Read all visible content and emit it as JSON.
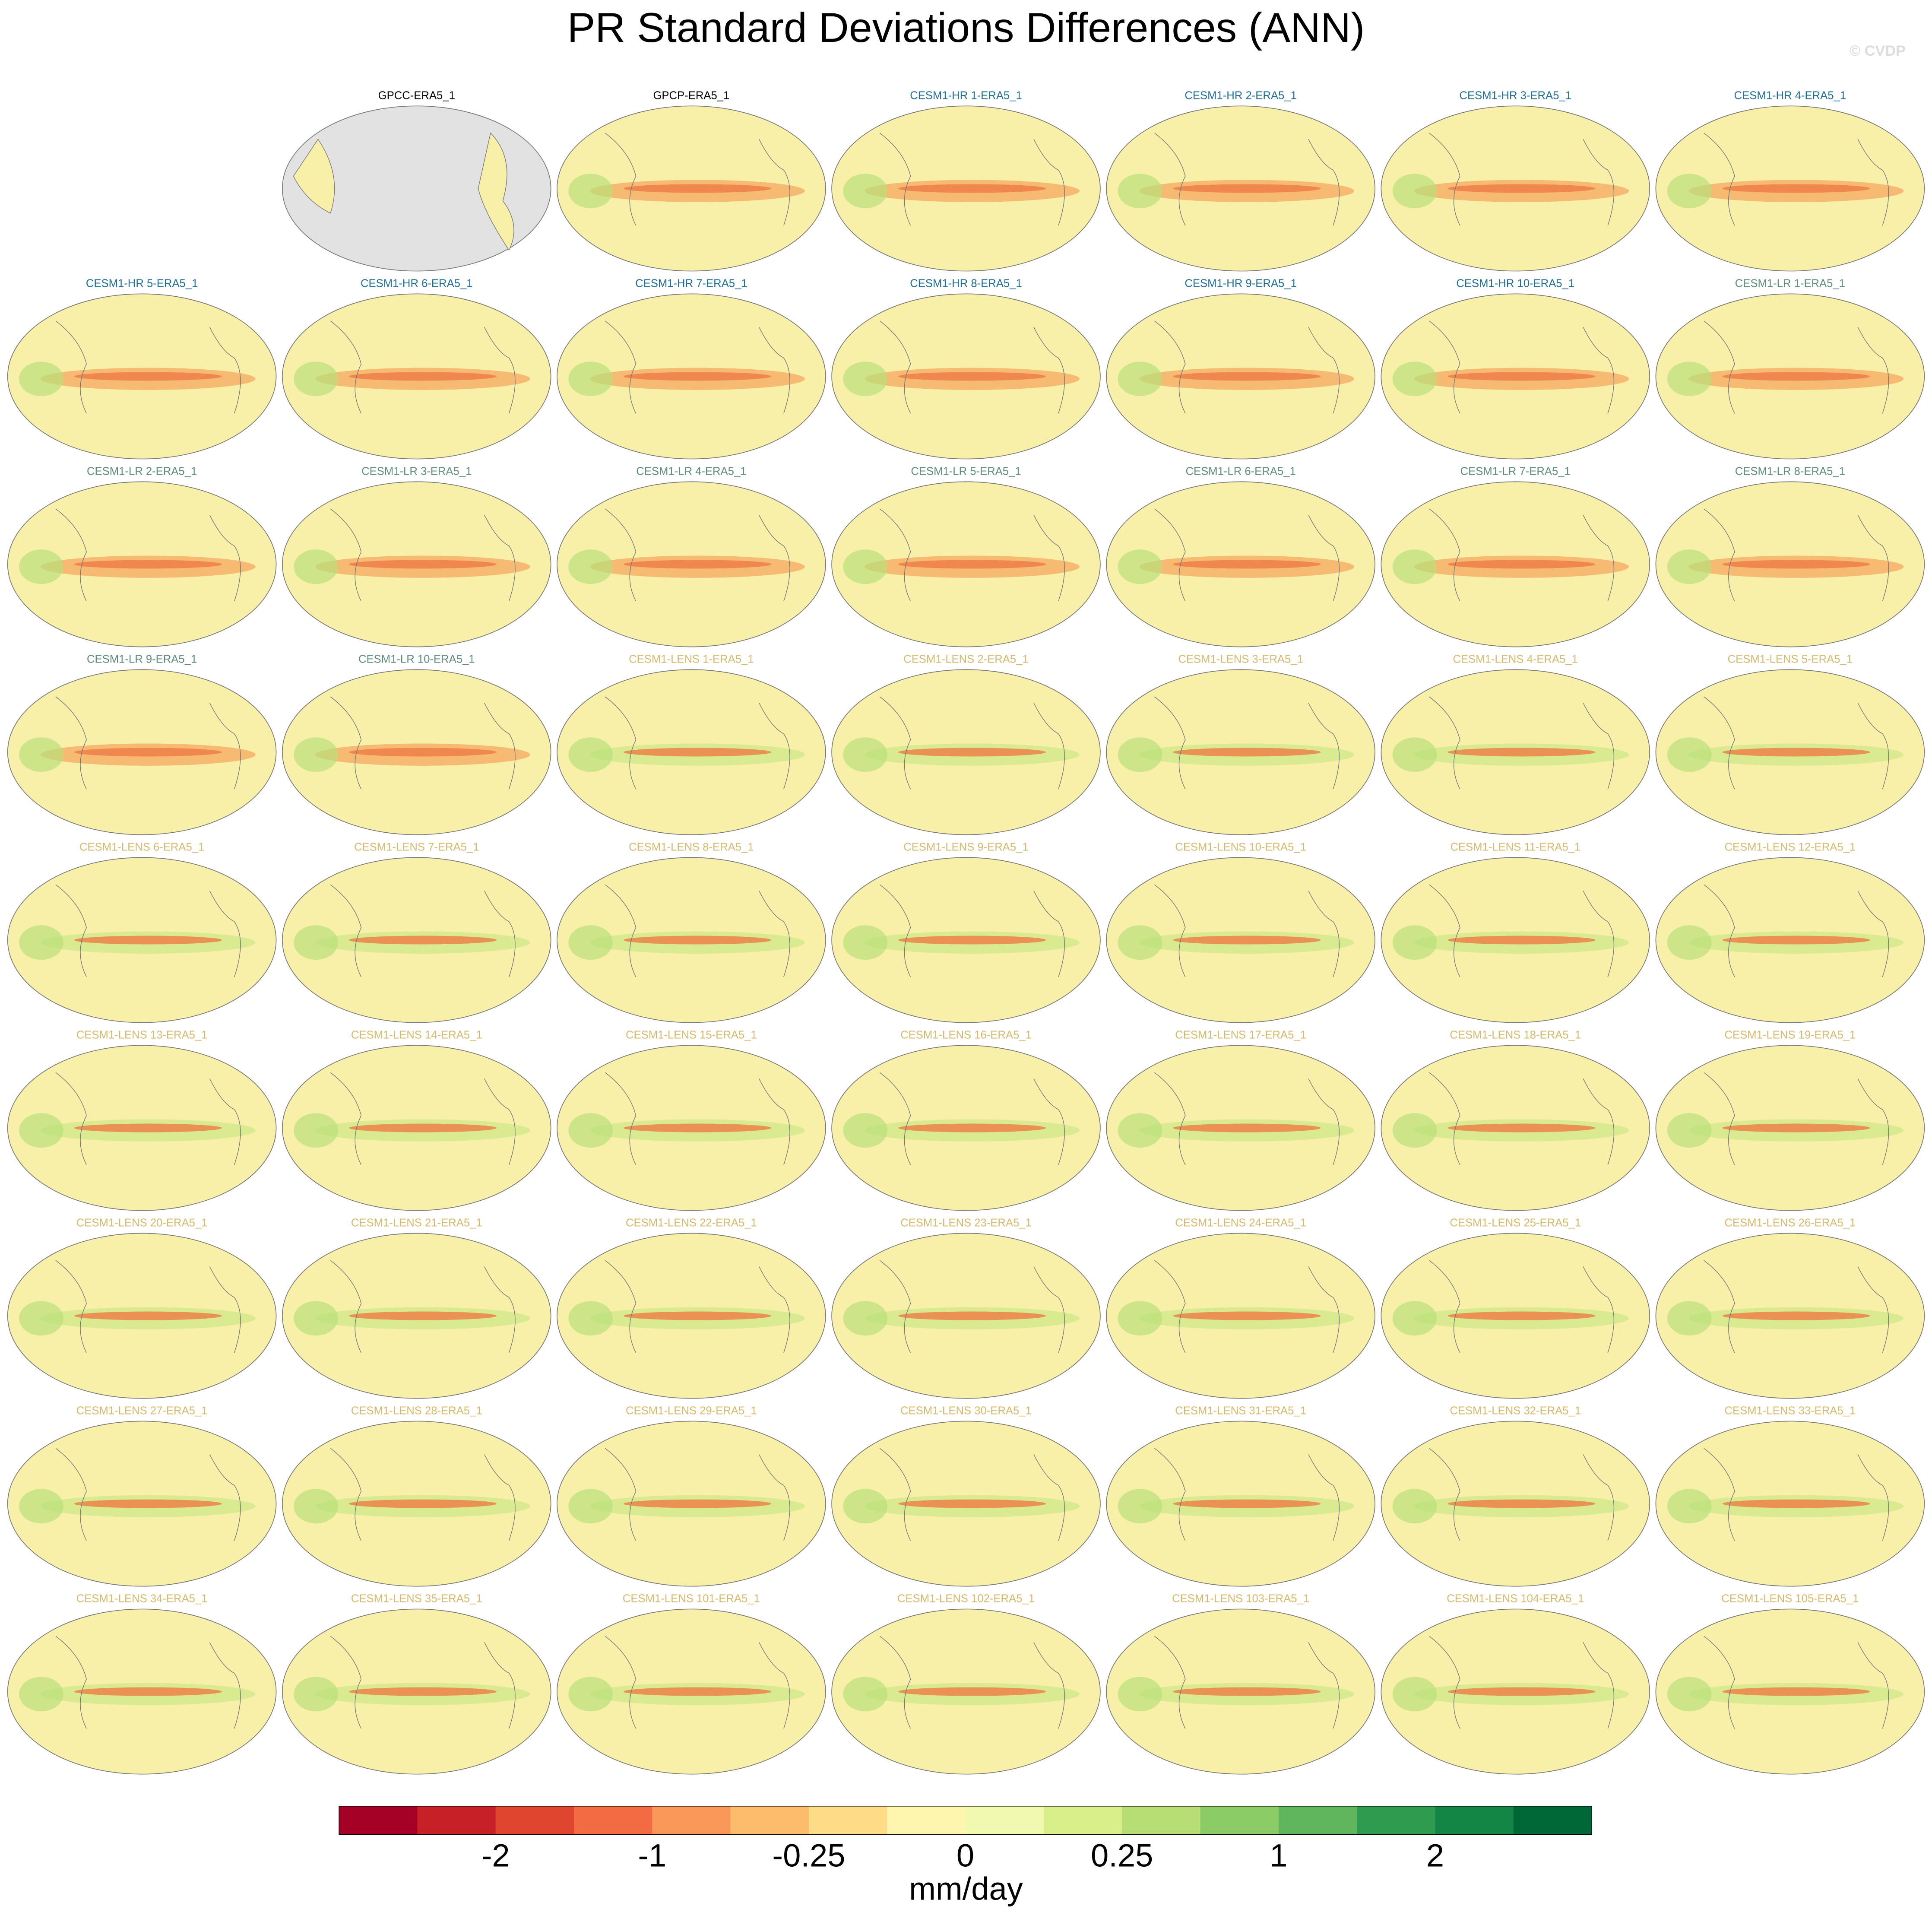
{
  "chart_data": {
    "type": "map-panel",
    "title": "PR Standard Deviations Differences (ANN)",
    "watermark": "© CVDP",
    "groups": [
      {
        "color": "#000000",
        "panels": [
          "GPCC-ERA5_1",
          "GPCP-ERA5_1"
        ]
      },
      {
        "color": "#1f6f96",
        "panels": [
          "CESM1-HR 1-ERA5_1",
          "CESM1-HR 2-ERA5_1",
          "CESM1-HR 3-ERA5_1",
          "CESM1-HR 4-ERA5_1",
          "CESM1-HR 5-ERA5_1",
          "CESM1-HR 6-ERA5_1",
          "CESM1-HR 7-ERA5_1",
          "CESM1-HR 8-ERA5_1",
          "CESM1-HR 9-ERA5_1",
          "CESM1-HR 10-ERA5_1"
        ]
      },
      {
        "color": "#5e8c7e",
        "panels": [
          "CESM1-LR 1-ERA5_1",
          "CESM1-LR 2-ERA5_1",
          "CESM1-LR 3-ERA5_1",
          "CESM1-LR 4-ERA5_1",
          "CESM1-LR 5-ERA5_1",
          "CESM1-LR 6-ERA5_1",
          "CESM1-LR 7-ERA5_1",
          "CESM1-LR 8-ERA5_1",
          "CESM1-LR 9-ERA5_1",
          "CESM1-LR 10-ERA5_1"
        ]
      },
      {
        "color": "#d6b96c",
        "panels": [
          "CESM1-LENS 1-ERA5_1",
          "CESM1-LENS 2-ERA5_1",
          "CESM1-LENS 3-ERA5_1",
          "CESM1-LENS 4-ERA5_1",
          "CESM1-LENS 5-ERA5_1",
          "CESM1-LENS 6-ERA5_1",
          "CESM1-LENS 7-ERA5_1",
          "CESM1-LENS 8-ERA5_1",
          "CESM1-LENS 9-ERA5_1",
          "CESM1-LENS 10-ERA5_1",
          "CESM1-LENS 11-ERA5_1",
          "CESM1-LENS 12-ERA5_1",
          "CESM1-LENS 13-ERA5_1",
          "CESM1-LENS 14-ERA5_1",
          "CESM1-LENS 15-ERA5_1",
          "CESM1-LENS 16-ERA5_1",
          "CESM1-LENS 17-ERA5_1",
          "CESM1-LENS 18-ERA5_1",
          "CESM1-LENS 19-ERA5_1",
          "CESM1-LENS 20-ERA5_1",
          "CESM1-LENS 21-ERA5_1",
          "CESM1-LENS 22-ERA5_1",
          "CESM1-LENS 23-ERA5_1",
          "CESM1-LENS 24-ERA5_1",
          "CESM1-LENS 25-ERA5_1",
          "CESM1-LENS 26-ERA5_1",
          "CESM1-LENS 27-ERA5_1",
          "CESM1-LENS 28-ERA5_1",
          "CESM1-LENS 29-ERA5_1",
          "CESM1-LENS 30-ERA5_1",
          "CESM1-LENS 31-ERA5_1",
          "CESM1-LENS 32-ERA5_1",
          "CESM1-LENS 33-ERA5_1",
          "CESM1-LENS 34-ERA5_1",
          "CESM1-LENS 35-ERA5_1",
          "CESM1-LENS 101-ERA5_1",
          "CESM1-LENS 102-ERA5_1",
          "CESM1-LENS 103-ERA5_1",
          "CESM1-LENS 104-ERA5_1",
          "CESM1-LENS 105-ERA5_1"
        ]
      }
    ],
    "colorbar": {
      "label": "mm/day",
      "colors": [
        "#a50026",
        "#c72127",
        "#e04530",
        "#f26b42",
        "#f99858",
        "#fdbb6c",
        "#fddb87",
        "#fef5af",
        "#f1f9b0",
        "#d8ef8a",
        "#b6de75",
        "#8ccc66",
        "#5fb65d",
        "#2f9b4f",
        "#138544",
        "#006837"
      ],
      "ticks": [
        -2,
        -1,
        -0.25,
        0,
        0.25,
        1,
        2
      ]
    }
  }
}
